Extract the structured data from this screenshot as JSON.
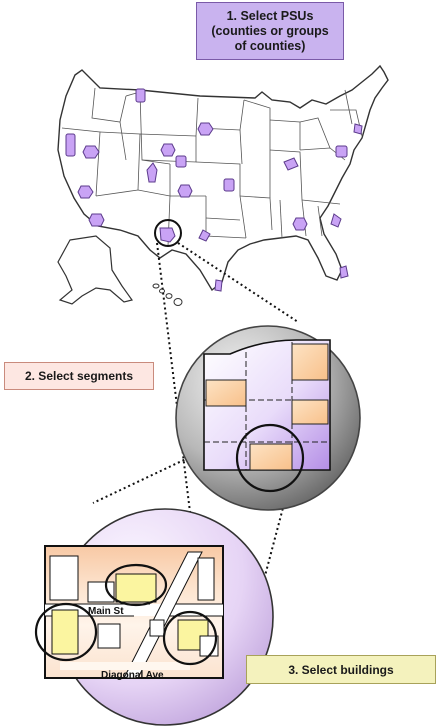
{
  "steps": {
    "step1": {
      "lines": [
        "1. Select PSUs",
        "(counties or groups",
        "of counties)"
      ]
    },
    "step2": {
      "label": "2. Select segments"
    },
    "step3": {
      "label": "3. Select buildings"
    }
  },
  "street_labels": {
    "main_st": "Main St",
    "diagonal_ave": "Diagonal Ave"
  },
  "colors": {
    "psu_fill": "#c9a3f5",
    "psu_stroke": "#5c3b8c",
    "step1_fill": "#c9b3ef",
    "step2_fill": "#fde7e2",
    "step3_fill": "#f4f2bd",
    "segment_orange": "#fbcf9c",
    "building_yellow": "#fbf5a0",
    "sphere_purple": "#e4d0f3"
  }
}
